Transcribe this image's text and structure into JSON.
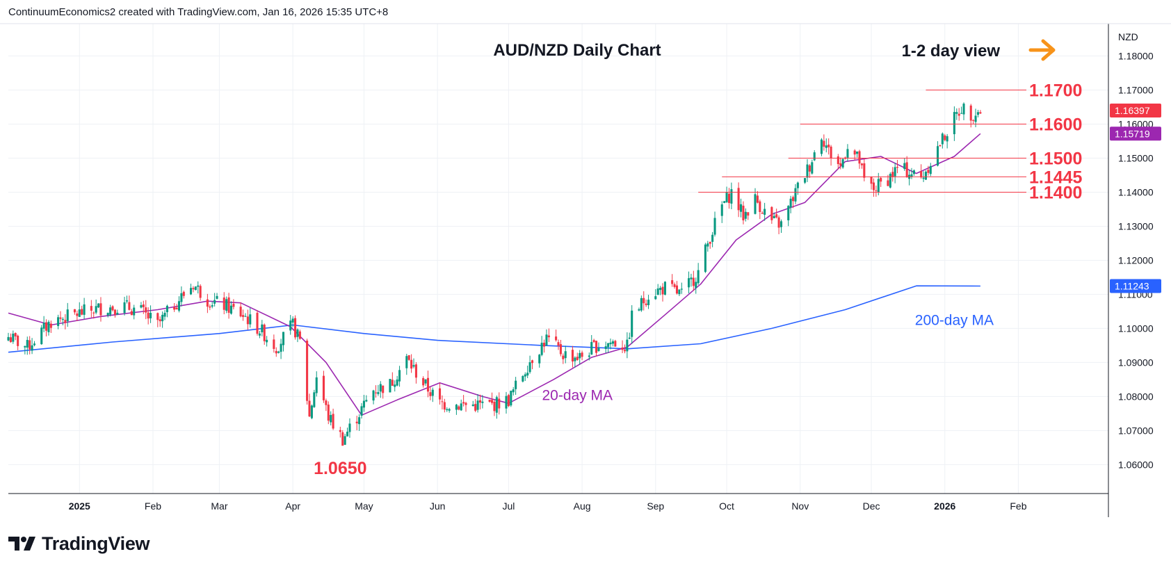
{
  "header": {
    "attribution": "ContinuumEconomics2 created with TradingView.com, Jan 16, 2026 15:35 UTC+8"
  },
  "brand": {
    "name": "TradingView",
    "icon": "tradingview-logo-icon"
  },
  "chart_data": {
    "type": "candlestick",
    "title": "AUD/NZD Daily Chart",
    "view_label": "1-2 day view",
    "view_icon": "arrow-right-icon",
    "currency_label": "NZD",
    "y_axis_position": "right",
    "ylim": [
      1.0515,
      1.1895
    ],
    "y_ticks": [
      "1.18000",
      "1.17000",
      "1.16000",
      "1.15000",
      "1.14000",
      "1.13000",
      "1.12000",
      "1.11000",
      "1.10000",
      "1.09000",
      "1.08000",
      "1.07000",
      "1.06000"
    ],
    "x_ticks": [
      {
        "label": "2025",
        "date": "2025-01-01"
      },
      {
        "label": "Feb",
        "date": "2025-02-01"
      },
      {
        "label": "Mar",
        "date": "2025-03-01"
      },
      {
        "label": "Apr",
        "date": "2025-04-01"
      },
      {
        "label": "May",
        "date": "2025-05-01"
      },
      {
        "label": "Jun",
        "date": "2025-06-01"
      },
      {
        "label": "Jul",
        "date": "2025-07-01"
      },
      {
        "label": "Aug",
        "date": "2025-08-01"
      },
      {
        "label": "Sep",
        "date": "2025-09-01"
      },
      {
        "label": "Oct",
        "date": "2025-10-01"
      },
      {
        "label": "Nov",
        "date": "2025-11-01"
      },
      {
        "label": "Dec",
        "date": "2025-12-01"
      },
      {
        "label": "2026",
        "date": "2026-01-01"
      },
      {
        "label": "Feb",
        "date": "2026-02-01"
      }
    ],
    "x_range": [
      "2024-12-02",
      "2026-03-11"
    ],
    "colors": {
      "up": "#089981",
      "down": "#f23645",
      "ma20": "#9c27b0",
      "ma200": "#2962ff",
      "level": "#f23645",
      "arrow": "#f7931a",
      "grid": "#eef1f5"
    },
    "price_tags": [
      {
        "label": "1.16397",
        "value": 1.16397,
        "color": "#f23645"
      },
      {
        "label": "1.15719",
        "value": 1.15719,
        "color": "#9c27b0"
      },
      {
        "label": "1.11243",
        "value": 1.11243,
        "color": "#2962ff"
      }
    ],
    "levels": [
      {
        "label": "1.1700",
        "value": 1.17,
        "from": "2025-12-24"
      },
      {
        "label": "1.1600",
        "value": 1.16,
        "from": "2025-11-01"
      },
      {
        "label": "1.1500",
        "value": 1.15,
        "from": "2025-10-27"
      },
      {
        "label": "1.1445",
        "value": 1.1445,
        "from": "2025-09-29"
      },
      {
        "label": "1.1400",
        "value": 1.14,
        "from": "2025-09-19"
      }
    ],
    "annotations": [
      {
        "label": "1.0650",
        "value": 1.065,
        "date": "2025-04-21"
      }
    ],
    "ma_labels": [
      {
        "label": "20-day MA",
        "series": "ma20",
        "date": "2025-07-30",
        "value": 1.079
      },
      {
        "label": "200-day MA",
        "series": "ma200",
        "date": "2026-01-05",
        "value": 1.101
      }
    ],
    "series": [
      {
        "name": "AUD/NZD",
        "kind": "ohlc",
        "anchors": [
          [
            "2024-12-02",
            1.0975
          ],
          [
            "2024-12-10",
            1.0945
          ],
          [
            "2024-12-20",
            1.102
          ],
          [
            "2025-01-01",
            1.1045
          ],
          [
            "2025-01-10",
            1.106
          ],
          [
            "2025-01-20",
            1.1065
          ],
          [
            "2025-01-27",
            1.105
          ],
          [
            "2025-02-03",
            1.101
          ],
          [
            "2025-02-10",
            1.107
          ],
          [
            "2025-02-18",
            1.113
          ],
          [
            "2025-02-24",
            1.1085
          ],
          [
            "2025-03-04",
            1.1065
          ],
          [
            "2025-03-12",
            1.1035
          ],
          [
            "2025-03-19",
            1.099
          ],
          [
            "2025-03-25",
            1.0945
          ],
          [
            "2025-04-01",
            1.101
          ],
          [
            "2025-04-04",
            1.096
          ],
          [
            "2025-04-08",
            1.074
          ],
          [
            "2025-04-11",
            1.086
          ],
          [
            "2025-04-16",
            1.074
          ],
          [
            "2025-04-22",
            1.0675
          ],
          [
            "2025-04-28",
            1.074
          ],
          [
            "2025-05-05",
            1.082
          ],
          [
            "2025-05-12",
            1.0835
          ],
          [
            "2025-05-19",
            1.091
          ],
          [
            "2025-05-26",
            1.084
          ],
          [
            "2025-06-02",
            1.078
          ],
          [
            "2025-06-12",
            1.0775
          ],
          [
            "2025-06-24",
            1.0775
          ],
          [
            "2025-07-01",
            1.079
          ],
          [
            "2025-07-10",
            1.0905
          ],
          [
            "2025-07-17",
            1.097
          ],
          [
            "2025-07-24",
            1.0925
          ],
          [
            "2025-07-31",
            1.0915
          ],
          [
            "2025-08-07",
            1.095
          ],
          [
            "2025-08-14",
            1.096
          ],
          [
            "2025-08-20",
            1.0945
          ],
          [
            "2025-08-22",
            1.1035
          ],
          [
            "2025-08-29",
            1.11
          ],
          [
            "2025-09-05",
            1.112
          ],
          [
            "2025-09-12",
            1.11
          ],
          [
            "2025-09-19",
            1.1165
          ],
          [
            "2025-09-24",
            1.127
          ],
          [
            "2025-09-29",
            1.136
          ],
          [
            "2025-10-03",
            1.14
          ],
          [
            "2025-10-08",
            1.133
          ],
          [
            "2025-10-13",
            1.138
          ],
          [
            "2025-10-20",
            1.1315
          ],
          [
            "2025-10-24",
            1.1305
          ],
          [
            "2025-10-30",
            1.14
          ],
          [
            "2025-11-05",
            1.148
          ],
          [
            "2025-11-10",
            1.157
          ],
          [
            "2025-11-13",
            1.152
          ],
          [
            "2025-11-18",
            1.1475
          ],
          [
            "2025-11-21",
            1.154
          ],
          [
            "2025-11-26",
            1.149
          ],
          [
            "2025-11-28",
            1.143
          ],
          [
            "2025-12-02",
            1.141
          ],
          [
            "2025-12-08",
            1.144
          ],
          [
            "2025-12-12",
            1.147
          ],
          [
            "2025-12-17",
            1.146
          ],
          [
            "2025-12-22",
            1.144
          ],
          [
            "2025-12-26",
            1.149
          ],
          [
            "2025-12-31",
            1.1555
          ],
          [
            "2026-01-05",
            1.1615
          ],
          [
            "2026-01-08",
            1.165
          ],
          [
            "2026-01-12",
            1.163
          ],
          [
            "2026-01-16",
            1.164
          ]
        ]
      },
      {
        "name": "20-day MA",
        "kind": "line",
        "points": [
          [
            "2024-12-02",
            1.1045
          ],
          [
            "2024-12-20",
            1.101
          ],
          [
            "2025-01-10",
            1.1035
          ],
          [
            "2025-02-03",
            1.1055
          ],
          [
            "2025-02-24",
            1.108
          ],
          [
            "2025-03-10",
            1.1075
          ],
          [
            "2025-03-31",
            1.1005
          ],
          [
            "2025-04-15",
            1.09
          ],
          [
            "2025-04-30",
            1.0745
          ],
          [
            "2025-05-15",
            1.079
          ],
          [
            "2025-06-02",
            1.084
          ],
          [
            "2025-06-20",
            1.08
          ],
          [
            "2025-07-01",
            1.078
          ],
          [
            "2025-07-20",
            1.085
          ],
          [
            "2025-08-05",
            1.0915
          ],
          [
            "2025-08-20",
            1.0945
          ],
          [
            "2025-09-05",
            1.104
          ],
          [
            "2025-09-20",
            1.113
          ],
          [
            "2025-10-05",
            1.126
          ],
          [
            "2025-10-20",
            1.1335
          ],
          [
            "2025-11-03",
            1.137
          ],
          [
            "2025-11-20",
            1.149
          ],
          [
            "2025-12-05",
            1.1505
          ],
          [
            "2025-12-20",
            1.1455
          ],
          [
            "2026-01-05",
            1.1505
          ],
          [
            "2026-01-16",
            1.15719
          ]
        ]
      },
      {
        "name": "200-day MA",
        "kind": "line",
        "points": [
          [
            "2024-12-02",
            1.093
          ],
          [
            "2025-01-15",
            1.096
          ],
          [
            "2025-03-01",
            1.0985
          ],
          [
            "2025-04-01",
            1.101
          ],
          [
            "2025-05-01",
            1.0985
          ],
          [
            "2025-06-01",
            1.0965
          ],
          [
            "2025-07-15",
            1.095
          ],
          [
            "2025-08-20",
            1.094
          ],
          [
            "2025-09-20",
            1.0955
          ],
          [
            "2025-10-20",
            1.1
          ],
          [
            "2025-11-20",
            1.1055
          ],
          [
            "2025-12-20",
            1.1125
          ],
          [
            "2026-01-16",
            1.11243
          ]
        ]
      }
    ]
  }
}
